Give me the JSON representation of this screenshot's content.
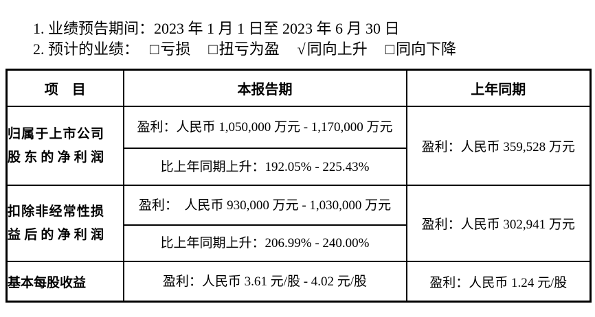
{
  "page": {
    "background": "#ffffff",
    "text_color": "#000000",
    "border_color": "#000000"
  },
  "intro": {
    "line1": "1. 业绩预告期间：2023 年 1 月 1 日至 2023 年 6 月 30 日",
    "line2_label": "2. 预计的业绩：",
    "options": [
      {
        "marker": "□",
        "label": "亏损",
        "checked": false
      },
      {
        "marker": "□",
        "label": "扭亏为盈",
        "checked": false
      },
      {
        "marker": "√",
        "label": "同向上升",
        "checked": true
      },
      {
        "marker": "□",
        "label": "同向下降",
        "checked": false
      }
    ]
  },
  "table": {
    "headers": [
      "项　目",
      "本报告期",
      "上年同期"
    ],
    "rows": [
      {
        "item": "归属于上市公司股东的净利润",
        "current_profit": "盈利：人民币 1,050,000 万元 - 1,170,000 万元",
        "current_change": "比上年同期上升：192.05% - 225.43%",
        "prior": "盈利：人民币 359,528 万元"
      },
      {
        "item": "扣除非经常性损益后的净利润",
        "current_profit": "盈利：　人民币 930,000 万元 - 1,030,000 万元",
        "current_change": "比上年同期上升：206.99% - 240.00%",
        "prior": "盈利：人民币 302,941 万元"
      },
      {
        "item": "基本每股收益",
        "current_profit": "盈利：人民币 3.61 元/股 - 4.02 元/股",
        "prior": "盈利：人民币 1.24 元/股"
      }
    ]
  }
}
